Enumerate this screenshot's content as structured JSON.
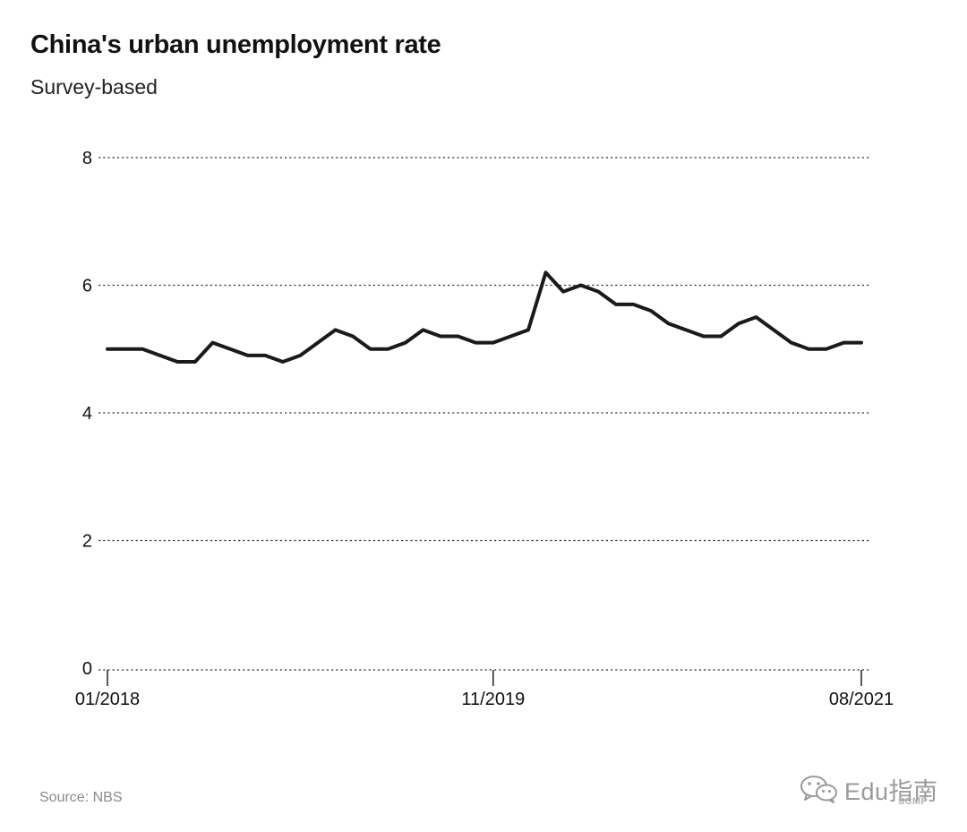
{
  "header": {
    "title": "China's urban unemployment rate",
    "subtitle": "Survey-based"
  },
  "footer": {
    "source": "Source: NBS",
    "watermark_text": "Edu指南",
    "brand": "SCMP"
  },
  "colors": {
    "line": "#1a1a1a",
    "grid": "#333333",
    "text": "#111111",
    "source": "#8a8a8a"
  },
  "chart_data": {
    "type": "line",
    "title": "China's urban unemployment rate",
    "subtitle": "Survey-based",
    "xlabel": "",
    "ylabel": "",
    "ylim": [
      0,
      8
    ],
    "yticks": [
      0,
      2,
      4,
      6,
      8
    ],
    "xtick_labels": [
      "01/2018",
      "11/2019",
      "08/2021"
    ],
    "grid": true,
    "series": [
      {
        "x": [
          "01/2018",
          "02/2018",
          "03/2018",
          "04/2018",
          "05/2018",
          "06/2018",
          "07/2018",
          "08/2018",
          "09/2018",
          "10/2018",
          "11/2018",
          "12/2018",
          "01/2019",
          "02/2019",
          "03/2019",
          "04/2019",
          "05/2019",
          "06/2019",
          "07/2019",
          "08/2019",
          "09/2019",
          "10/2019",
          "11/2019",
          "12/2019",
          "01/2020",
          "02/2020",
          "03/2020",
          "04/2020",
          "05/2020",
          "06/2020",
          "07/2020",
          "08/2020",
          "09/2020",
          "10/2020",
          "11/2020",
          "12/2020",
          "01/2021",
          "02/2021",
          "03/2021",
          "04/2021",
          "05/2021",
          "06/2021",
          "07/2021",
          "08/2021"
        ],
        "values": [
          5.0,
          5.0,
          5.0,
          4.9,
          4.8,
          4.8,
          5.1,
          5.0,
          4.9,
          4.9,
          4.8,
          4.9,
          5.1,
          5.3,
          5.2,
          5.0,
          5.0,
          5.1,
          5.3,
          5.2,
          5.2,
          5.1,
          5.1,
          5.2,
          5.3,
          6.2,
          5.9,
          6.0,
          5.9,
          5.7,
          5.7,
          5.6,
          5.4,
          5.3,
          5.2,
          5.2,
          5.4,
          5.5,
          5.3,
          5.1,
          5.0,
          5.0,
          5.1,
          5.1
        ]
      }
    ]
  }
}
